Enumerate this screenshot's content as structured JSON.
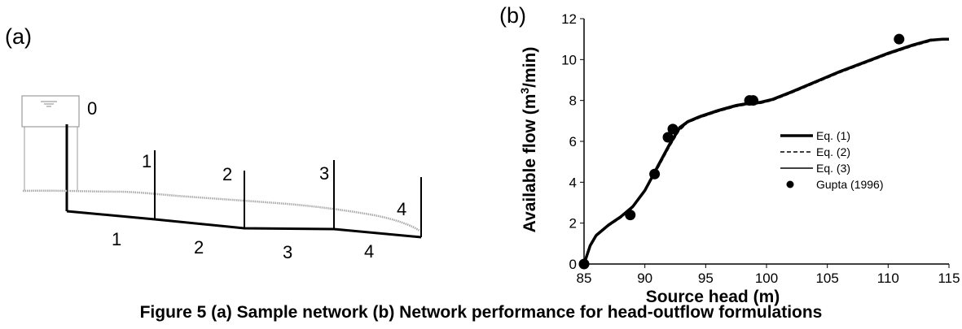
{
  "panel_a": {
    "label": "(a)",
    "reservoir_label": "0",
    "node_labels": [
      "1",
      "2",
      "3",
      "4"
    ],
    "pipe_labels": [
      "1",
      "2",
      "3",
      "4"
    ]
  },
  "panel_b": {
    "label": "(b)"
  },
  "caption": "Figure 5  (a) Sample network  (b) Network performance  for  head-outflow formulations",
  "chart_data": {
    "type": "line",
    "title": "",
    "xlabel": "Source head (m)",
    "ylabel": "Available flow (m³/min)",
    "ylabel_parts": {
      "before": "Available flow (m",
      "sup": "3",
      "after": "/min)"
    },
    "xlim": [
      85,
      115
    ],
    "ylim": [
      0,
      12
    ],
    "xticks": [
      85,
      90,
      95,
      100,
      105,
      110,
      115
    ],
    "yticks": [
      0,
      2,
      4,
      6,
      8,
      10,
      12
    ],
    "grid": false,
    "legend_position": "center-right",
    "series": [
      {
        "name": "Eq. (1)",
        "style": "thick-solid",
        "x": [
          85,
          85.5,
          86,
          87,
          88,
          89,
          90,
          91,
          92,
          92.8,
          93.5,
          94.5,
          96,
          97.5,
          98.5,
          99.5,
          100.5,
          102,
          104,
          106,
          108,
          110,
          112,
          113.5,
          114.5,
          115.5
        ],
        "y": [
          0,
          0.9,
          1.4,
          1.9,
          2.3,
          2.8,
          3.6,
          4.7,
          5.8,
          6.6,
          6.95,
          7.2,
          7.5,
          7.75,
          7.85,
          7.9,
          8.05,
          8.4,
          8.9,
          9.4,
          9.85,
          10.3,
          10.7,
          10.95,
          11.0,
          11.0
        ]
      },
      {
        "name": "Eq. (2)",
        "style": "dashed",
        "x": [
          85,
          85.5,
          86,
          87,
          88,
          89,
          90,
          91,
          92,
          92.8,
          93.5,
          94.5,
          96,
          97.5,
          98.5,
          99.5,
          100.5,
          102,
          104,
          106,
          108,
          110,
          112,
          113.5,
          114.5,
          115.5
        ],
        "y": [
          0,
          0.85,
          1.35,
          1.85,
          2.25,
          2.75,
          3.55,
          4.6,
          5.7,
          6.5,
          6.9,
          7.15,
          7.45,
          7.7,
          7.8,
          7.85,
          8.0,
          8.35,
          8.85,
          9.35,
          9.8,
          10.25,
          10.65,
          10.9,
          11.0,
          11.0
        ]
      },
      {
        "name": "Eq. (3)",
        "style": "solid",
        "x": [
          85,
          85.5,
          86,
          87,
          88,
          89,
          90,
          91,
          92,
          92.8,
          93.5,
          94.5,
          96,
          97.5,
          98.5,
          99.5,
          100.5,
          102,
          104,
          106,
          108,
          110,
          112,
          113.5,
          114.5,
          115.5
        ],
        "y": [
          0,
          0.95,
          1.45,
          1.95,
          2.35,
          2.85,
          3.65,
          4.8,
          5.9,
          6.7,
          7.0,
          7.25,
          7.55,
          7.8,
          7.9,
          7.95,
          8.1,
          8.45,
          8.95,
          9.45,
          9.9,
          10.35,
          10.75,
          11.0,
          11.0,
          11.0
        ]
      },
      {
        "name": "Gupta (1996)",
        "style": "markers",
        "x": [
          85,
          88.8,
          90.8,
          91.9,
          92.3,
          98.6,
          98.9,
          110.9
        ],
        "y": [
          0,
          2.4,
          4.4,
          6.2,
          6.6,
          8.0,
          8.0,
          11.0
        ]
      }
    ]
  }
}
